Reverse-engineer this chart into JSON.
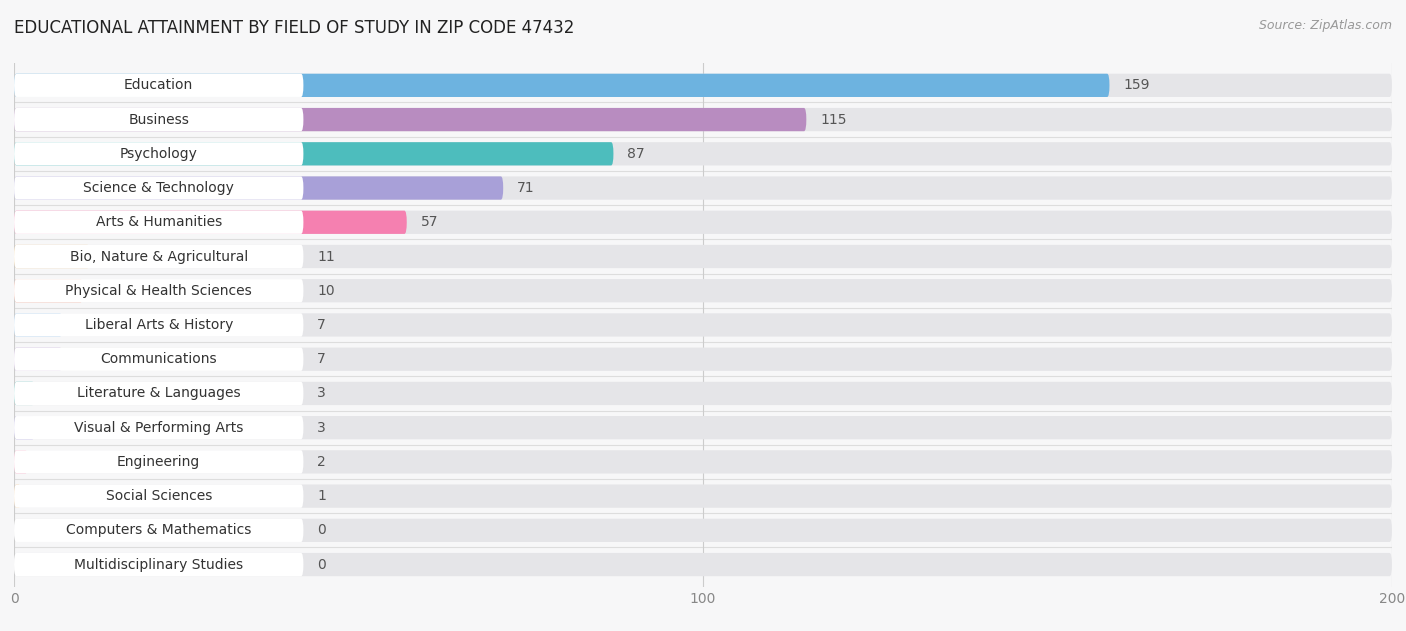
{
  "title": "EDUCATIONAL ATTAINMENT BY FIELD OF STUDY IN ZIP CODE 47432",
  "source": "Source: ZipAtlas.com",
  "categories": [
    "Education",
    "Business",
    "Psychology",
    "Science & Technology",
    "Arts & Humanities",
    "Bio, Nature & Agricultural",
    "Physical & Health Sciences",
    "Liberal Arts & History",
    "Communications",
    "Literature & Languages",
    "Visual & Performing Arts",
    "Engineering",
    "Social Sciences",
    "Computers & Mathematics",
    "Multidisciplinary Studies"
  ],
  "values": [
    159,
    115,
    87,
    71,
    57,
    11,
    10,
    7,
    7,
    3,
    3,
    2,
    1,
    0,
    0
  ],
  "bar_colors": [
    "#6db3e0",
    "#b88cc0",
    "#4dbdbd",
    "#a8a0d8",
    "#f580b0",
    "#f5c882",
    "#f5a088",
    "#88bce8",
    "#c4a8d8",
    "#50c0b8",
    "#a8a0e0",
    "#f598b8",
    "#f5c890",
    "#f5a098",
    "#90b8f0"
  ],
  "xlim": [
    0,
    200
  ],
  "xticks": [
    0,
    100,
    200
  ],
  "background_color": "#f7f7f8",
  "bar_bg_color": "#e5e5e8",
  "title_fontsize": 12,
  "label_fontsize": 10,
  "value_fontsize": 10
}
